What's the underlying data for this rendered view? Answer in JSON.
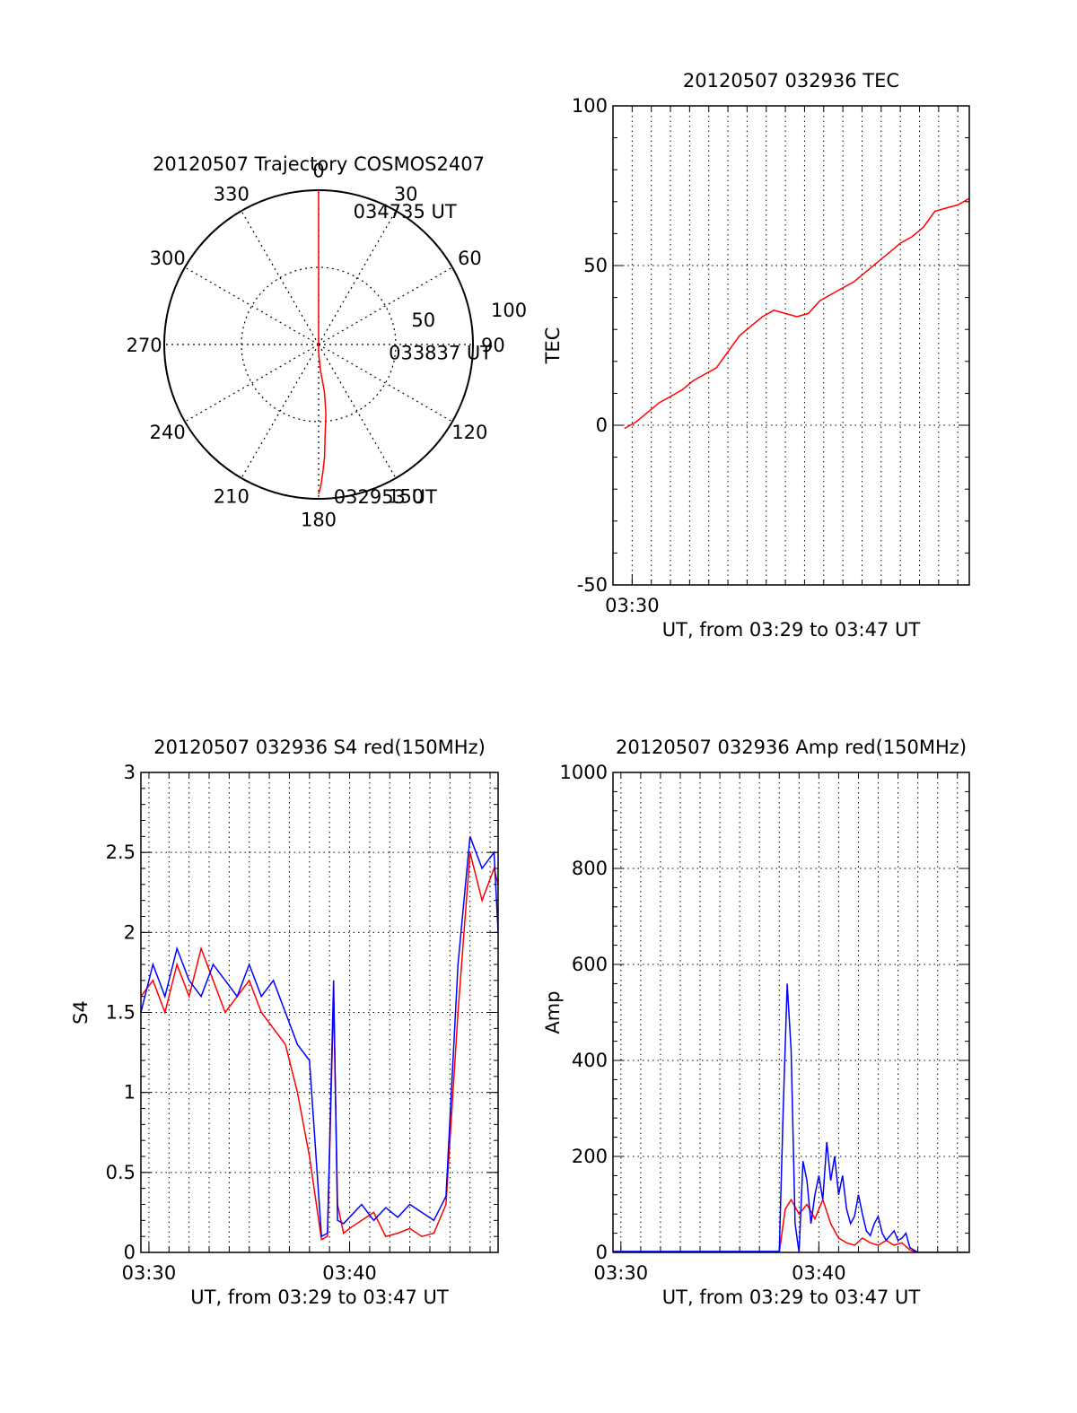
{
  "chart_data": [
    {
      "type": "polar",
      "title": "20120507 Trajectory COSMOS2407",
      "angle_labels": [
        "0",
        "30",
        "60",
        "90",
        "120",
        "150",
        "180",
        "210",
        "240",
        "270",
        "300",
        "330"
      ],
      "radius_labels": [
        "50",
        "100"
      ],
      "radius_ticks": [
        50,
        100
      ],
      "series": [
        {
          "color": "#ff0000",
          "points": [
            {
              "azimuth": 0,
              "r": 100
            },
            {
              "azimuth": 180,
              "r": 5
            },
            {
              "azimuth": 176,
              "r": 16
            },
            {
              "azimuth": 173,
              "r": 31
            },
            {
              "azimuth": 174,
              "r": 45
            },
            {
              "azimuth": 176,
              "r": 60
            },
            {
              "azimuth": 177,
              "r": 73
            },
            {
              "azimuth": 178,
              "r": 82
            },
            {
              "azimuth": 179,
              "r": 91
            },
            {
              "azimuth": 180,
              "r": 97
            }
          ]
        }
      ],
      "annotations": [
        {
          "text": "034735 UT",
          "azimuth": 16,
          "r": 90
        },
        {
          "text": "033837 UT",
          "azimuth": 96,
          "r": 48
        },
        {
          "text": "032953 UT",
          "azimuth": 173,
          "r": 99
        }
      ]
    },
    {
      "type": "line",
      "title": "20120507 032936 TEC",
      "xlabel": "UT, from 03:29 to 03:47 UT",
      "ylabel": "TEC",
      "xlim": [
        209.0,
        227.6
      ],
      "ylim": [
        -50,
        100
      ],
      "yticks": [
        -50,
        0,
        50,
        100
      ],
      "ytick_labels": [
        "-50",
        "0",
        "50",
        "100"
      ],
      "xticks": [
        210
      ],
      "xtick_labels": [
        "03:30"
      ],
      "grid": true,
      "series": [
        {
          "color": "#ff0000",
          "x": [
            209.6,
            210.2,
            210.8,
            211.4,
            212.0,
            212.6,
            213.2,
            213.8,
            214.4,
            215.0,
            215.6,
            216.2,
            216.8,
            217.4,
            218.0,
            218.6,
            219.2,
            219.8,
            220.4,
            221.0,
            221.6,
            222.2,
            222.8,
            223.4,
            224.0,
            224.6,
            225.2,
            225.8,
            226.4,
            227.0,
            227.6
          ],
          "y": [
            -1,
            1,
            4,
            7,
            9,
            11,
            14,
            16,
            18,
            23,
            28,
            31,
            34,
            36,
            35,
            34,
            35,
            39,
            41,
            43,
            45,
            48,
            51,
            54,
            57,
            59,
            62,
            67,
            68,
            69,
            71
          ]
        }
      ]
    },
    {
      "type": "line",
      "title": "20120507 032936 S4 red(150MHz)",
      "xlabel": "UT, from 03:29 to 03:47 UT",
      "ylabel": "S4",
      "xlim": [
        209.6,
        227.4
      ],
      "ylim": [
        0,
        3
      ],
      "yticks": [
        0,
        0.5,
        1,
        1.5,
        2,
        2.5,
        3
      ],
      "ytick_labels": [
        "0",
        "0.5",
        "1",
        "1.5",
        "2",
        "2.5",
        "3"
      ],
      "xticks": [
        210,
        220
      ],
      "xtick_labels": [
        "03:30",
        "03:40"
      ],
      "grid": true,
      "series": [
        {
          "color": "#ff0000",
          "x": [
            209.6,
            210.2,
            210.8,
            211.4,
            212.0,
            212.6,
            213.2,
            213.8,
            214.4,
            215.0,
            215.6,
            216.2,
            216.8,
            217.4,
            218.0,
            218.6,
            218.9,
            219.2,
            219.4,
            219.7,
            220.0,
            220.6,
            221.2,
            221.8,
            222.4,
            223.0,
            223.6,
            224.2,
            224.8,
            225.4,
            226.0,
            226.6,
            227.2,
            227.4
          ],
          "y": [
            1.6,
            1.7,
            1.5,
            1.8,
            1.6,
            1.9,
            1.7,
            1.5,
            1.6,
            1.7,
            1.5,
            1.4,
            1.3,
            1.0,
            0.6,
            0.08,
            0.1,
            1.6,
            0.3,
            0.12,
            0.15,
            0.2,
            0.25,
            0.1,
            0.12,
            0.15,
            0.1,
            0.12,
            0.3,
            1.5,
            2.5,
            2.2,
            2.4,
            2.3
          ]
        },
        {
          "color": "#0000ff",
          "x": [
            209.6,
            210.2,
            210.8,
            211.4,
            212.0,
            212.6,
            213.2,
            213.8,
            214.4,
            215.0,
            215.6,
            216.2,
            216.8,
            217.4,
            218.0,
            218.6,
            218.9,
            219.2,
            219.4,
            219.7,
            220.0,
            220.6,
            221.2,
            221.8,
            222.4,
            223.0,
            223.6,
            224.2,
            224.8,
            225.4,
            226.0,
            226.6,
            227.2,
            227.4
          ],
          "y": [
            1.5,
            1.8,
            1.6,
            1.9,
            1.7,
            1.6,
            1.8,
            1.7,
            1.6,
            1.8,
            1.6,
            1.7,
            1.5,
            1.3,
            1.2,
            0.1,
            0.12,
            1.7,
            0.2,
            0.18,
            0.22,
            0.3,
            0.2,
            0.28,
            0.22,
            0.3,
            0.25,
            0.2,
            0.35,
            1.8,
            2.6,
            2.4,
            2.5,
            2.0
          ]
        }
      ]
    },
    {
      "type": "line",
      "title": "20120507 032936 Amp red(150MHz)",
      "xlabel": "UT, from 03:29 to 03:47 UT",
      "ylabel": "Amp",
      "xlim": [
        209.6,
        227.6
      ],
      "ylim": [
        0,
        1000
      ],
      "yticks": [
        0,
        200,
        400,
        600,
        800,
        1000
      ],
      "ytick_labels": [
        "0",
        "200",
        "400",
        "600",
        "800",
        "1000"
      ],
      "xticks": [
        210,
        220
      ],
      "xtick_labels": [
        "03:30",
        "03:40"
      ],
      "grid": true,
      "series": [
        {
          "color": "#ff0000",
          "x": [
            209.6,
            212.0,
            215.0,
            218.0,
            218.3,
            218.6,
            219.0,
            219.4,
            219.8,
            220.2,
            220.6,
            221.0,
            221.4,
            221.8,
            222.2,
            222.6,
            223.0,
            223.4,
            223.8,
            224.2,
            224.6,
            225.0,
            226.0,
            227.6
          ],
          "y": [
            0,
            0,
            0,
            0,
            90,
            110,
            80,
            100,
            70,
            110,
            60,
            30,
            20,
            15,
            30,
            20,
            15,
            25,
            15,
            20,
            5,
            0,
            0,
            0
          ]
        },
        {
          "color": "#0000ff",
          "x": [
            209.6,
            212.0,
            215.0,
            218.0,
            218.2,
            218.4,
            218.6,
            218.8,
            219.0,
            219.2,
            219.4,
            219.6,
            219.8,
            220.0,
            220.2,
            220.4,
            220.6,
            220.8,
            221.0,
            221.2,
            221.4,
            221.6,
            221.8,
            222.0,
            222.2,
            222.4,
            222.6,
            222.8,
            223.0,
            223.2,
            223.4,
            223.6,
            223.8,
            224.0,
            224.2,
            224.4,
            224.6,
            225.0,
            226.0,
            227.6
          ],
          "y": [
            2,
            2,
            2,
            2,
            300,
            560,
            420,
            60,
            0,
            190,
            150,
            60,
            120,
            160,
            110,
            230,
            150,
            200,
            120,
            160,
            90,
            60,
            75,
            120,
            80,
            45,
            35,
            60,
            75,
            40,
            25,
            35,
            45,
            25,
            30,
            40,
            10,
            0,
            0,
            0
          ]
        }
      ]
    }
  ]
}
